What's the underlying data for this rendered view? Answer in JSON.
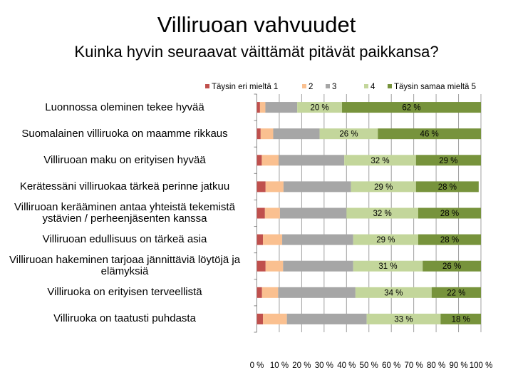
{
  "chart_data": {
    "type": "bar",
    "orientation": "horizontal",
    "stacked": "percent",
    "title": "Villiruoan vahvuudet",
    "subtitle": "Kuinka hyvin seuraavat väittämät pitävät paikkansa?",
    "xlabel": "",
    "ylabel": "",
    "xlim": [
      0,
      100
    ],
    "grid": true,
    "legend_position": "top",
    "x_ticks": [
      "0 %",
      "10 %",
      "20 %",
      "30 %",
      "40 %",
      "50 %",
      "60 %",
      "70 %",
      "80 %",
      "90 %",
      "100 %"
    ],
    "categories": [
      "Luonnossa oleminen tekee hyvää",
      "Suomalainen villiruoka on maamme rikkaus",
      "Villiruoan maku on erityisen hyvää",
      "Kerätessäni villiruokaa tärkeä perinne jatkuu",
      "Villiruoan kerääminen antaa yhteistä tekemistä ystävien / perheenjäsenten kanssa",
      "Villiruoan edullisuus on tärkeä asia",
      "Villiruoan hakeminen tarjoaa jännittäviä löytöjä ja elämyksiä",
      "Villiruoka on erityisen terveellistä",
      "Villiruoka on taatusti puhdasta"
    ],
    "series": [
      {
        "name": "Täysin eri mieltä 1",
        "color": "#c0504d",
        "values": [
          1.4,
          1.7,
          2.2,
          3.9,
          3.6,
          2.7,
          3.9,
          2.3,
          2.7
        ],
        "labels": [
          "",
          "",
          "",
          "",
          "",
          "",
          "",
          "",
          ""
        ]
      },
      {
        "name": "2",
        "color": "#fac090",
        "values": [
          2.4,
          5.6,
          7.5,
          8.0,
          6.7,
          8.6,
          7.8,
          7.2,
          10.7
        ],
        "labels": [
          "",
          "",
          "",
          "",
          "",
          "",
          "",
          "",
          ""
        ]
      },
      {
        "name": "3",
        "color": "#a6a6a6",
        "values": [
          14.2,
          20.7,
          29.3,
          30.1,
          29.7,
          31.7,
          31.3,
          34.5,
          35.6
        ],
        "labels": [
          "",
          "",
          "",
          "",
          "",
          "",
          "",
          "",
          ""
        ]
      },
      {
        "name": "4",
        "color": "#c3d69b",
        "values": [
          20,
          26,
          32,
          29,
          32,
          29,
          31,
          34,
          33
        ],
        "labels": [
          "20 %",
          "26 %",
          "32 %",
          "29 %",
          "32 %",
          "29 %",
          "31 %",
          "34 %",
          "33 %"
        ]
      },
      {
        "name": "Täysin samaa mieltä 5",
        "color": "#77933c",
        "values": [
          62,
          46,
          29,
          28,
          28,
          28,
          26,
          22,
          18
        ],
        "labels": [
          "62 %",
          "46 %",
          "29 %",
          "28 %",
          "28 %",
          "28 %",
          "26 %",
          "22 %",
          "18 %"
        ]
      }
    ]
  }
}
